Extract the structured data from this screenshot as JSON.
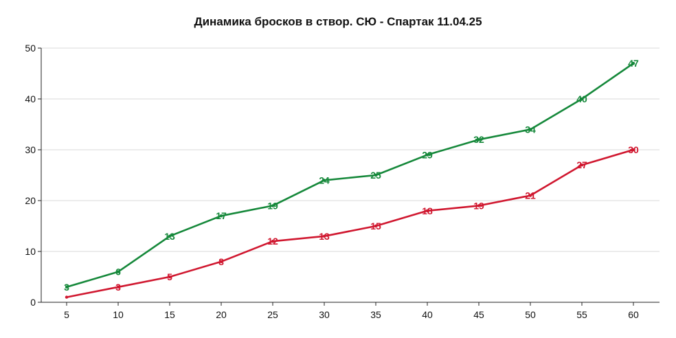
{
  "chart_data": {
    "type": "line",
    "title": "Динамика бросков в створ. СЮ - Спартак 11.04.25",
    "xlabel": "",
    "ylabel": "",
    "x": [
      5,
      10,
      15,
      20,
      25,
      30,
      35,
      40,
      45,
      50,
      55,
      60
    ],
    "xticks": [
      5,
      10,
      15,
      20,
      25,
      30,
      35,
      40,
      45,
      50,
      55,
      60
    ],
    "yticks": [
      0,
      10,
      20,
      30,
      40,
      50
    ],
    "ylim": [
      0,
      50
    ],
    "grid": "horizontal",
    "legend": "none",
    "series": [
      {
        "color": "#15883a",
        "values": [
          3,
          6,
          13,
          17,
          19,
          24,
          25,
          29,
          32,
          34,
          40,
          47
        ]
      },
      {
        "color": "#d0172f",
        "values": [
          1,
          3,
          5,
          8,
          12,
          13,
          15,
          18,
          19,
          21,
          27,
          30
        ]
      }
    ],
    "data_labels": [
      [
        "3",
        "6",
        "13",
        "17",
        "19",
        "24",
        "25",
        "29",
        "32",
        "34",
        "40",
        "47"
      ],
      [
        "",
        "3",
        "5",
        "8",
        "12",
        "13",
        "15",
        "18",
        "19",
        "21",
        "27",
        "30"
      ]
    ]
  }
}
